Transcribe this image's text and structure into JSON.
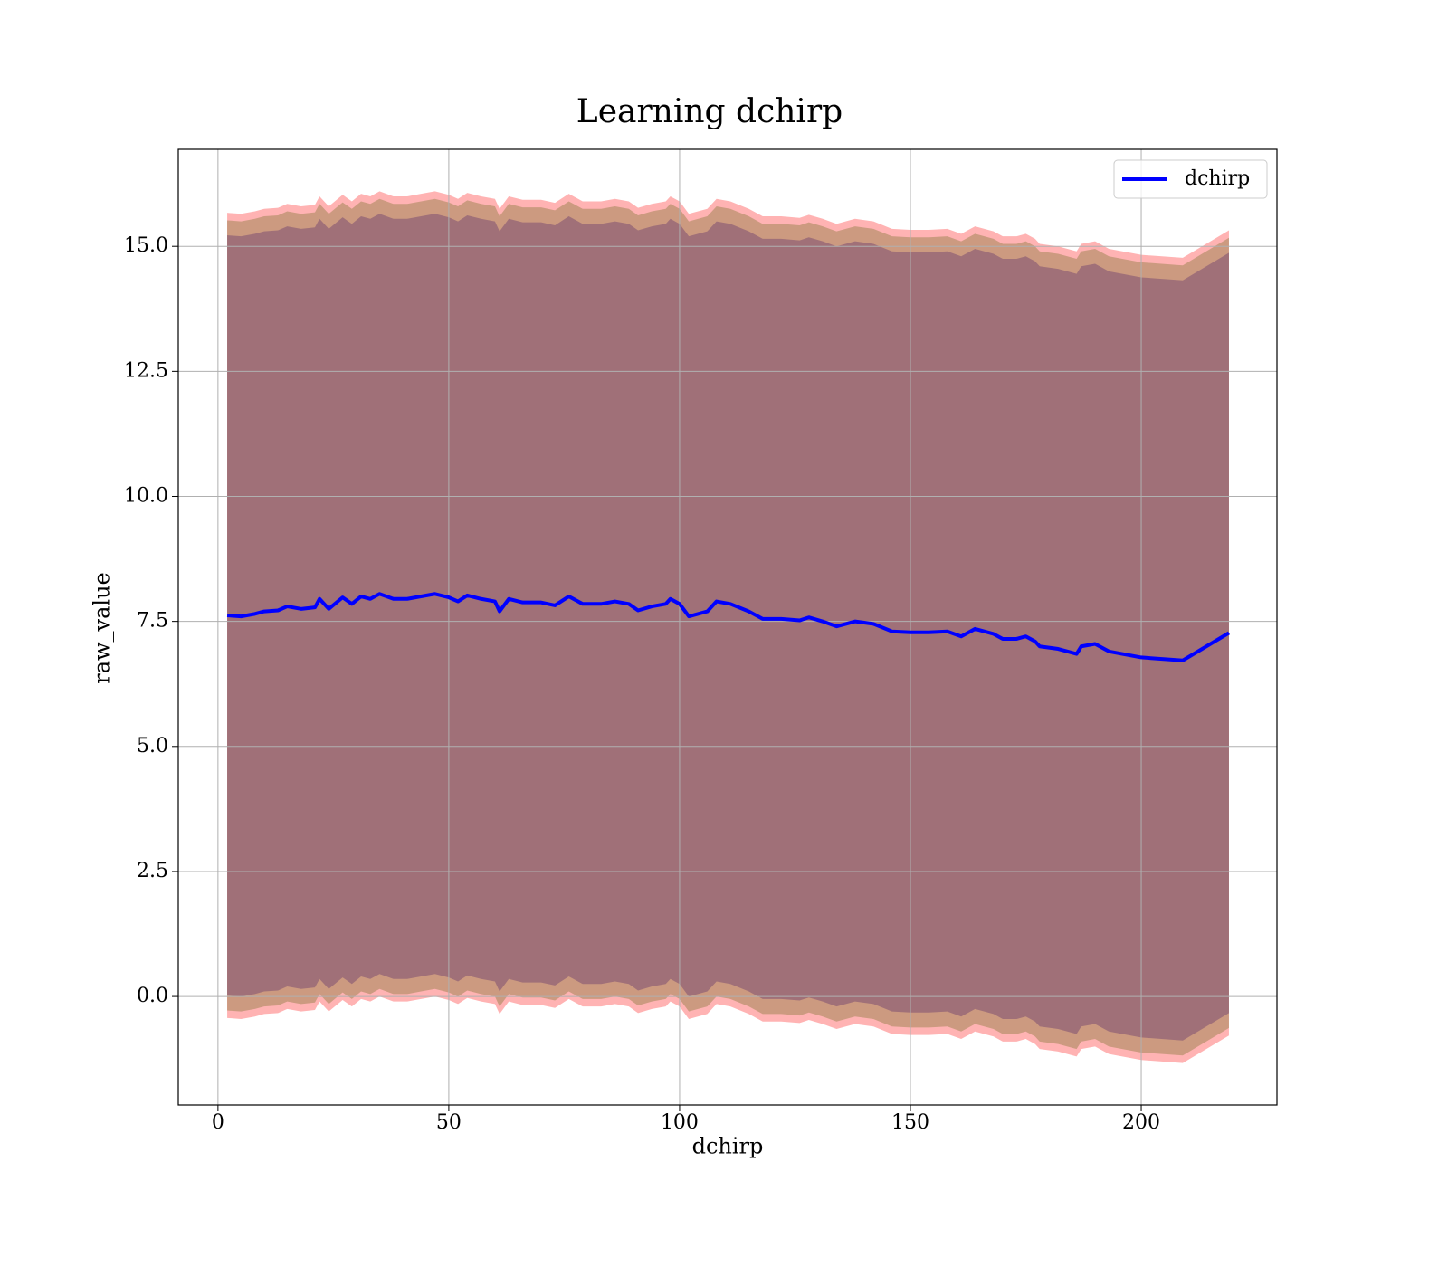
{
  "chart_data": {
    "type": "line",
    "title": "Learning dchirp",
    "xlabel": "dchirp",
    "ylabel": "raw_value",
    "x": [
      2,
      5,
      8,
      10,
      13,
      15,
      18,
      21,
      22,
      24,
      27,
      29,
      31,
      33,
      35,
      38,
      41,
      44,
      47,
      50,
      52,
      54,
      57,
      60,
      61,
      63,
      66,
      70,
      73,
      76,
      79,
      83,
      86,
      89,
      91,
      94,
      97,
      98,
      100,
      102,
      106,
      108,
      111,
      115,
      118,
      122,
      126,
      128,
      131,
      134,
      138,
      142,
      146,
      150,
      154,
      158,
      161,
      164,
      168,
      170,
      173,
      175,
      177,
      178,
      182,
      186,
      187,
      190,
      193,
      200,
      209,
      219
    ],
    "series": [
      {
        "name": "dchirp",
        "color": "#0000ff",
        "values": [
          7.62,
          7.6,
          7.65,
          7.7,
          7.72,
          7.8,
          7.75,
          7.78,
          7.95,
          7.75,
          7.98,
          7.85,
          8.0,
          7.95,
          8.05,
          7.95,
          7.95,
          8.0,
          8.05,
          7.98,
          7.9,
          8.02,
          7.95,
          7.9,
          7.7,
          7.95,
          7.88,
          7.88,
          7.82,
          8.0,
          7.85,
          7.85,
          7.9,
          7.85,
          7.72,
          7.8,
          7.85,
          7.95,
          7.85,
          7.6,
          7.7,
          7.9,
          7.85,
          7.7,
          7.55,
          7.55,
          7.52,
          7.58,
          7.5,
          7.4,
          7.5,
          7.45,
          7.3,
          7.28,
          7.28,
          7.3,
          7.2,
          7.35,
          7.25,
          7.15,
          7.15,
          7.2,
          7.1,
          7.0,
          6.95,
          6.85,
          7.0,
          7.05,
          6.9,
          6.78,
          6.72,
          7.27
        ]
      }
    ],
    "bands": [
      {
        "color": "#ffb3b3",
        "error": 8.05
      },
      {
        "color": "#cc9a80",
        "error": 7.9
      },
      {
        "color": "#a07078",
        "error": 7.6
      }
    ],
    "xlim": [
      -8.6,
      229.4
    ],
    "ylim": [
      -2.17,
      16.94
    ],
    "xticks": [
      0,
      50,
      100,
      150,
      200
    ],
    "yticks": [
      {
        "value": 0,
        "label": "0.0"
      },
      2.5,
      {
        "value": 5,
        "label": "5.0"
      },
      7.5,
      {
        "value": 10,
        "label": "10.0"
      },
      12.5,
      {
        "value": 15,
        "label": "15.0"
      }
    ],
    "grid": true,
    "legend": "upper right"
  }
}
